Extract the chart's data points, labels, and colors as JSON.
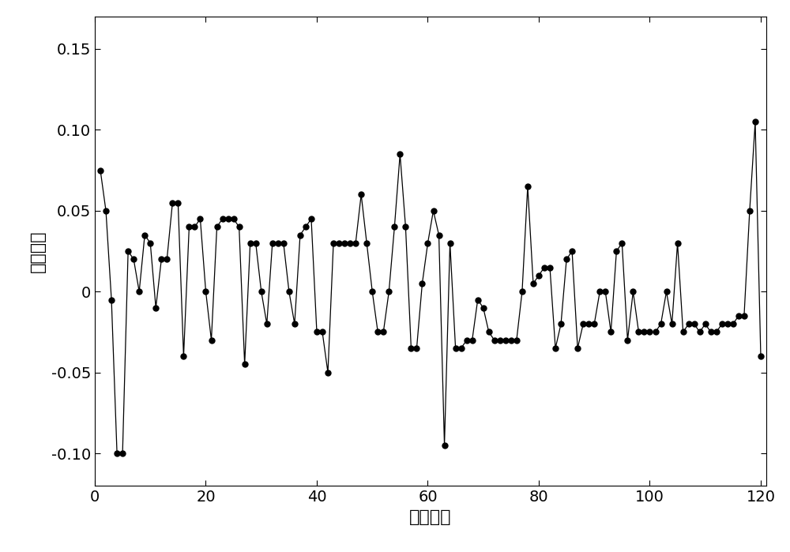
{
  "x": [
    1,
    2,
    3,
    4,
    5,
    6,
    7,
    8,
    9,
    10,
    11,
    12,
    13,
    14,
    15,
    16,
    17,
    18,
    19,
    20,
    21,
    22,
    23,
    24,
    25,
    26,
    27,
    28,
    29,
    30,
    31,
    32,
    33,
    34,
    35,
    36,
    37,
    38,
    39,
    40,
    41,
    42,
    43,
    44,
    45,
    46,
    47,
    48,
    49,
    50,
    51,
    52,
    53,
    54,
    55,
    56,
    57,
    58,
    59,
    60,
    61,
    62,
    63,
    64,
    65,
    66,
    67,
    68,
    69,
    70,
    71,
    72,
    73,
    74,
    75,
    76,
    77,
    78,
    79,
    80,
    81,
    82,
    83,
    84,
    85,
    86,
    87,
    88,
    89,
    90,
    91,
    92,
    93,
    94,
    95,
    96,
    97,
    98,
    99,
    100,
    101,
    102,
    103,
    104,
    105,
    106,
    107,
    108,
    109,
    110,
    111,
    112,
    113,
    114,
    115,
    116,
    117,
    118,
    119,
    120
  ],
  "y": [
    0.075,
    0.05,
    -0.005,
    -0.1,
    -0.1,
    0.025,
    0.02,
    0.0,
    0.035,
    0.03,
    -0.01,
    0.02,
    0.02,
    0.055,
    0.055,
    -0.04,
    0.04,
    0.04,
    0.045,
    0.0,
    -0.03,
    0.04,
    0.045,
    0.045,
    0.045,
    0.04,
    -0.045,
    0.03,
    0.03,
    0.0,
    -0.02,
    0.03,
    0.03,
    0.03,
    0.0,
    -0.02,
    0.035,
    0.04,
    0.045,
    -0.025,
    -0.025,
    -0.05,
    0.03,
    0.03,
    0.03,
    0.03,
    0.03,
    0.06,
    0.03,
    0.0,
    -0.025,
    -0.025,
    0.0,
    0.04,
    0.085,
    0.04,
    -0.035,
    -0.035,
    0.005,
    0.03,
    0.05,
    0.035,
    -0.095,
    0.03,
    -0.035,
    -0.035,
    -0.03,
    -0.03,
    -0.005,
    -0.01,
    -0.025,
    -0.03,
    -0.03,
    -0.03,
    -0.03,
    -0.03,
    0.0,
    0.065,
    0.005,
    0.01,
    0.015,
    0.015,
    -0.035,
    -0.02,
    0.02,
    0.025,
    -0.035,
    -0.02,
    -0.02,
    -0.02,
    0.0,
    0.0,
    -0.025,
    0.025,
    0.03,
    -0.03,
    0.0,
    -0.025,
    -0.025,
    -0.025,
    -0.025,
    -0.02,
    0.0,
    -0.02,
    0.03,
    -0.025,
    -0.02,
    -0.02,
    -0.025,
    -0.02,
    -0.025,
    -0.025,
    -0.02,
    -0.02,
    -0.02,
    -0.015,
    -0.015,
    0.05,
    0.105,
    -0.04
  ],
  "xlim": [
    0,
    121
  ],
  "ylim": [
    -0.12,
    0.17
  ],
  "yticks": [
    -0.1,
    -0.05,
    0.0,
    0.05,
    0.1,
    0.15
  ],
  "xticks": [
    0,
    20,
    40,
    60,
    80,
    100,
    120
  ],
  "xlabel": "训练样本",
  "ylabel": "训练误差",
  "line_color": "#000000",
  "marker_color": "#000000",
  "marker_size": 5,
  "line_width": 0.9,
  "background_color": "#ffffff",
  "tick_direction": "in",
  "xlabel_fontsize": 16,
  "ylabel_fontsize": 16,
  "tick_labelsize": 14
}
